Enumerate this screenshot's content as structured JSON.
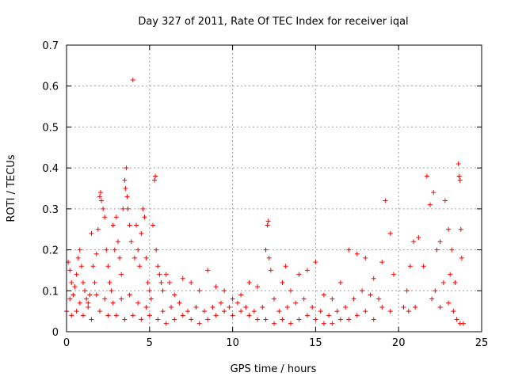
{
  "chart_data": {
    "type": "scatter",
    "title": "Day 327 of 2011, Rate Of TEC Index for receiver iqal",
    "xlabel": "GPS time / hours",
    "ylabel": "ROTI / TECUs",
    "xlim": [
      0,
      25
    ],
    "ylim": [
      0,
      0.7
    ],
    "x_ticks": [
      "0",
      "5",
      "10",
      "15",
      "20",
      "25"
    ],
    "y_ticks": [
      "0",
      "0.1",
      "0.2",
      "0.3",
      "0.4",
      "0.5",
      "0.6",
      "0.7"
    ],
    "grid": true,
    "marker": "+",
    "color": "#ff0000",
    "series": [
      {
        "points": [
          [
            0.1,
            0.17
          ],
          [
            0.2,
            0.15
          ],
          [
            0.3,
            0.12
          ],
          [
            0.4,
            0.09
          ],
          [
            0.5,
            0.11
          ],
          [
            0.6,
            0.14
          ],
          [
            0.7,
            0.18
          ],
          [
            0.8,
            0.2
          ],
          [
            0.9,
            0.16
          ],
          [
            1.0,
            0.12
          ],
          [
            1.1,
            0.1
          ],
          [
            1.2,
            0.08
          ],
          [
            1.3,
            0.06
          ],
          [
            1.4,
            0.09
          ],
          [
            1.5,
            0.24
          ],
          [
            1.6,
            0.16
          ],
          [
            1.7,
            0.12
          ],
          [
            1.8,
            0.19
          ],
          [
            1.9,
            0.25
          ],
          [
            2.0,
            0.33
          ],
          [
            2.05,
            0.34
          ],
          [
            2.1,
            0.32
          ],
          [
            2.2,
            0.3
          ],
          [
            2.3,
            0.28
          ],
          [
            2.4,
            0.2
          ],
          [
            2.5,
            0.16
          ],
          [
            2.6,
            0.12
          ],
          [
            2.7,
            0.1
          ],
          [
            2.8,
            0.26
          ],
          [
            2.9,
            0.2
          ],
          [
            3.0,
            0.28
          ],
          [
            3.1,
            0.22
          ],
          [
            3.2,
            0.18
          ],
          [
            3.3,
            0.14
          ],
          [
            3.4,
            0.3
          ],
          [
            3.5,
            0.37
          ],
          [
            3.55,
            0.35
          ],
          [
            3.6,
            0.4
          ],
          [
            3.65,
            0.33
          ],
          [
            3.7,
            0.3
          ],
          [
            3.8,
            0.26
          ],
          [
            3.9,
            0.22
          ],
          [
            4.0,
            0.615
          ],
          [
            4.1,
            0.18
          ],
          [
            4.2,
            0.26
          ],
          [
            4.3,
            0.2
          ],
          [
            4.4,
            0.16
          ],
          [
            4.5,
            0.24
          ],
          [
            4.6,
            0.3
          ],
          [
            4.7,
            0.28
          ],
          [
            4.8,
            0.18
          ],
          [
            4.9,
            0.12
          ],
          [
            5.0,
            0.1
          ],
          [
            5.1,
            0.08
          ],
          [
            5.2,
            0.26
          ],
          [
            5.3,
            0.37
          ],
          [
            5.35,
            0.38
          ],
          [
            5.4,
            0.2
          ],
          [
            5.5,
            0.16
          ],
          [
            5.6,
            0.14
          ],
          [
            5.7,
            0.12
          ],
          [
            5.8,
            0.1
          ],
          [
            6.0,
            0.14
          ],
          [
            6.2,
            0.12
          ],
          [
            6.5,
            0.09
          ],
          [
            7.0,
            0.13
          ],
          [
            7.5,
            0.12
          ],
          [
            8.0,
            0.1
          ],
          [
            8.5,
            0.15
          ],
          [
            9.0,
            0.11
          ],
          [
            9.5,
            0.1
          ],
          [
            10.0,
            0.08
          ],
          [
            10.5,
            0.09
          ],
          [
            11.0,
            0.12
          ],
          [
            11.5,
            0.11
          ],
          [
            12.0,
            0.2
          ],
          [
            12.1,
            0.26
          ],
          [
            12.15,
            0.27
          ],
          [
            12.2,
            0.18
          ],
          [
            12.3,
            0.15
          ],
          [
            12.5,
            0.08
          ],
          [
            13.0,
            0.12
          ],
          [
            13.2,
            0.16
          ],
          [
            13.5,
            0.1
          ],
          [
            14.0,
            0.14
          ],
          [
            14.5,
            0.15
          ],
          [
            15.0,
            0.17
          ],
          [
            15.5,
            0.09
          ],
          [
            16.0,
            0.08
          ],
          [
            16.5,
            0.12
          ],
          [
            17.0,
            0.2
          ],
          [
            17.5,
            0.19
          ],
          [
            18.0,
            0.18
          ],
          [
            18.5,
            0.13
          ],
          [
            19.0,
            0.17
          ],
          [
            19.2,
            0.32
          ],
          [
            19.5,
            0.24
          ],
          [
            19.7,
            0.14
          ],
          [
            20.5,
            0.1
          ],
          [
            20.7,
            0.16
          ],
          [
            20.9,
            0.22
          ],
          [
            21.2,
            0.23
          ],
          [
            21.5,
            0.16
          ],
          [
            21.7,
            0.38
          ],
          [
            21.9,
            0.31
          ],
          [
            22.1,
            0.34
          ],
          [
            22.3,
            0.2
          ],
          [
            22.5,
            0.22
          ],
          [
            22.8,
            0.32
          ],
          [
            23.0,
            0.25
          ],
          [
            23.2,
            0.2
          ],
          [
            23.4,
            0.12
          ],
          [
            23.6,
            0.41
          ],
          [
            23.65,
            0.38
          ],
          [
            23.7,
            0.37
          ],
          [
            23.75,
            0.25
          ],
          [
            23.8,
            0.18
          ],
          [
            23.5,
            0.03
          ],
          [
            23.7,
            0.02
          ],
          [
            0.0,
            0.05
          ],
          [
            0.3,
            0.04
          ],
          [
            0.6,
            0.05
          ],
          [
            1.0,
            0.04
          ],
          [
            1.5,
            0.03
          ],
          [
            2.0,
            0.05
          ],
          [
            2.5,
            0.04
          ],
          [
            3.0,
            0.04
          ],
          [
            3.5,
            0.03
          ],
          [
            4.0,
            0.04
          ],
          [
            4.5,
            0.03
          ],
          [
            5.0,
            0.04
          ],
          [
            5.5,
            0.03
          ],
          [
            6.0,
            0.02
          ],
          [
            6.5,
            0.03
          ],
          [
            7.0,
            0.04
          ],
          [
            7.5,
            0.03
          ],
          [
            8.0,
            0.02
          ],
          [
            8.5,
            0.03
          ],
          [
            9.0,
            0.04
          ],
          [
            9.5,
            0.05
          ],
          [
            10.0,
            0.04
          ],
          [
            10.5,
            0.05
          ],
          [
            11.0,
            0.04
          ],
          [
            11.5,
            0.03
          ],
          [
            12.0,
            0.03
          ],
          [
            12.5,
            0.02
          ],
          [
            13.0,
            0.03
          ],
          [
            13.5,
            0.02
          ],
          [
            14.0,
            0.03
          ],
          [
            14.5,
            0.04
          ],
          [
            15.0,
            0.03
          ],
          [
            15.5,
            0.02
          ],
          [
            16.0,
            0.02
          ],
          [
            16.5,
            0.03
          ],
          [
            17.0,
            0.03
          ],
          [
            17.5,
            0.04
          ],
          [
            18.0,
            0.05
          ],
          [
            18.5,
            0.03
          ],
          [
            19.0,
            0.06
          ],
          [
            19.5,
            0.05
          ],
          [
            20.3,
            0.06
          ],
          [
            20.6,
            0.05
          ],
          [
            21.0,
            0.06
          ],
          [
            22.0,
            0.08
          ],
          [
            22.5,
            0.06
          ],
          [
            23.0,
            0.07
          ],
          [
            23.3,
            0.05
          ],
          [
            0.2,
            0.08
          ],
          [
            0.8,
            0.07
          ],
          [
            1.3,
            0.07
          ],
          [
            1.8,
            0.09
          ],
          [
            2.3,
            0.08
          ],
          [
            2.8,
            0.07
          ],
          [
            3.3,
            0.08
          ],
          [
            3.8,
            0.09
          ],
          [
            4.3,
            0.07
          ],
          [
            4.8,
            0.06
          ],
          [
            5.8,
            0.05
          ],
          [
            6.3,
            0.06
          ],
          [
            6.8,
            0.07
          ],
          [
            7.3,
            0.05
          ],
          [
            7.8,
            0.06
          ],
          [
            8.3,
            0.05
          ],
          [
            8.8,
            0.06
          ],
          [
            9.3,
            0.07
          ],
          [
            9.8,
            0.06
          ],
          [
            10.3,
            0.07
          ],
          [
            10.8,
            0.06
          ],
          [
            11.3,
            0.05
          ],
          [
            11.8,
            0.06
          ],
          [
            12.8,
            0.05
          ],
          [
            13.3,
            0.06
          ],
          [
            13.8,
            0.07
          ],
          [
            14.3,
            0.08
          ],
          [
            14.8,
            0.06
          ],
          [
            15.3,
            0.05
          ],
          [
            15.8,
            0.04
          ],
          [
            16.3,
            0.05
          ],
          [
            16.8,
            0.06
          ],
          [
            17.3,
            0.08
          ],
          [
            17.8,
            0.1
          ],
          [
            18.3,
            0.09
          ],
          [
            18.8,
            0.08
          ],
          [
            22.2,
            0.1
          ],
          [
            22.7,
            0.12
          ],
          [
            23.1,
            0.14
          ],
          [
            23.9,
            0.02
          ]
        ]
      }
    ]
  }
}
